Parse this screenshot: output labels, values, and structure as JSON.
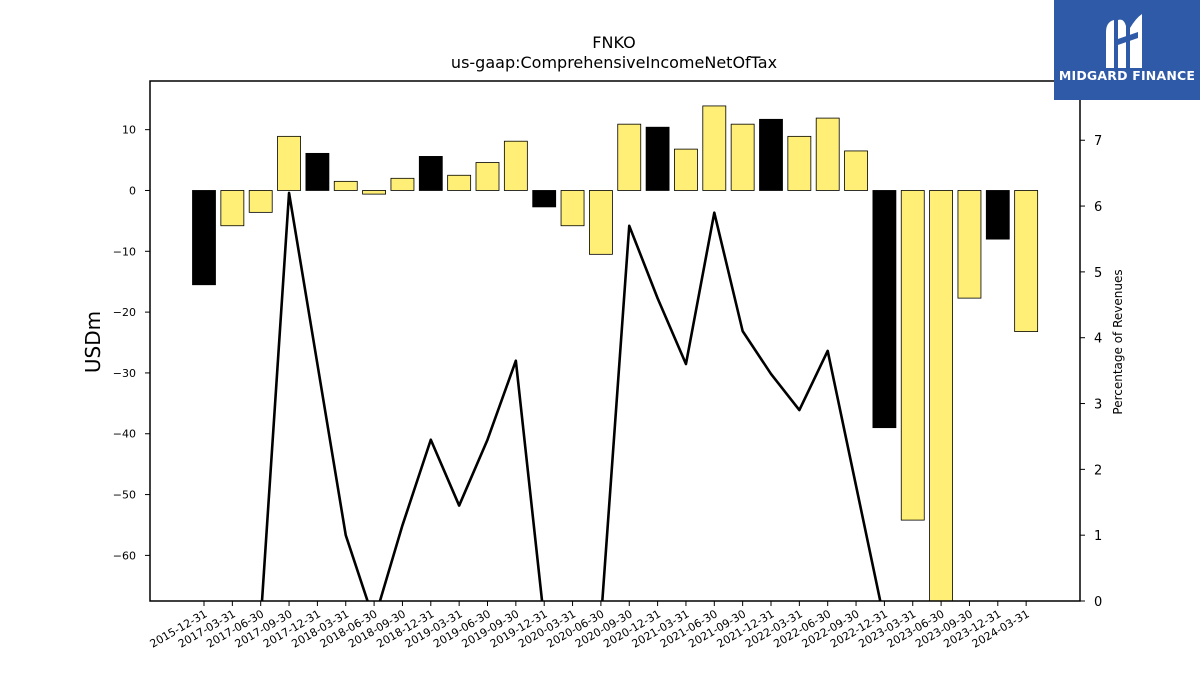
{
  "chart_data": {
    "type": "bar",
    "title": "FNKO",
    "subtitle": "us-gaap:ComprehensiveIncomeNetOfTax",
    "ylabel": "USDm",
    "y2label": "Percentage of Revenues",
    "ylim": [
      -67.5,
      18
    ],
    "y2lim": [
      0,
      7.9
    ],
    "yticks": [
      10,
      0,
      -10,
      -20,
      -30,
      -40,
      -50,
      -60
    ],
    "y2ticks": [
      0,
      1,
      2,
      3,
      4,
      5,
      6,
      7
    ],
    "categories": [
      "2015-12-31",
      "2017-03-31",
      "2017-06-30",
      "2017-09-30",
      "2017-12-31",
      "2018-03-31",
      "2018-06-30",
      "2018-09-30",
      "2018-12-31",
      "2019-03-31",
      "2019-06-30",
      "2019-09-30",
      "2019-12-31",
      "2020-03-31",
      "2020-06-30",
      "2020-09-30",
      "2020-12-31",
      "2021-03-31",
      "2021-06-30",
      "2021-09-30",
      "2021-12-31",
      "2022-03-31",
      "2022-06-30",
      "2022-09-30",
      "2022-12-31",
      "2023-03-31",
      "2023-06-30",
      "2023-09-30",
      "2023-12-31",
      "2024-03-31"
    ],
    "series": [
      {
        "values": [
          -15.5,
          -5.8,
          -3.6,
          8.9,
          6.1,
          1.5,
          -0.6,
          2.0,
          5.6,
          2.5,
          4.6,
          8.1,
          -2.7,
          -5.8,
          -10.5,
          10.9,
          10.4,
          6.8,
          13.9,
          10.9,
          11.7,
          8.9,
          11.9,
          6.5,
          -39.0,
          -54.2,
          -68.0,
          -17.7,
          -8.0,
          -23.2
        ],
        "colors": [
          "#000000",
          "#ffef77",
          "#ffef77",
          "#ffef77",
          "#000000",
          "#ffef77",
          "#ffef77",
          "#ffef77",
          "#000000",
          "#ffef77",
          "#ffef77",
          "#ffef77",
          "#000000",
          "#ffef77",
          "#ffef77",
          "#ffef77",
          "#000000",
          "#ffef77",
          "#ffef77",
          "#ffef77",
          "#000000",
          "#ffef77",
          "#ffef77",
          "#ffef77",
          "#000000",
          "#ffef77",
          "#ffef77",
          "#ffef77",
          "#000000",
          "#ffef77"
        ]
      },
      {
        "type": "line",
        "axis": "right",
        "values": [
          null,
          null,
          -0.3,
          6.2,
          3.6,
          1.0,
          -0.3,
          1.15,
          2.45,
          1.45,
          2.45,
          3.65,
          -0.3,
          null,
          -0.3,
          5.7,
          4.6,
          3.6,
          5.9,
          4.1,
          3.45,
          2.9,
          3.8,
          1.75,
          -0.3,
          null,
          null,
          null,
          null,
          null
        ]
      }
    ],
    "grid": false
  },
  "brand": {
    "name": "MIDGARD FINANCE",
    "bg_color": "#2f5aa8"
  }
}
